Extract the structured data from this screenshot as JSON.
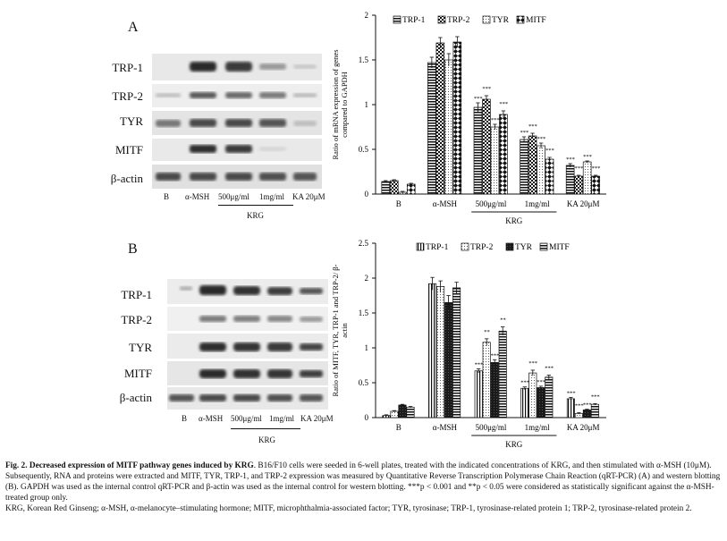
{
  "panel_a": {
    "letter": "A",
    "blot_rows": [
      "TRP-1",
      "TRP-2",
      "TYR",
      "MITF",
      "β-actin"
    ],
    "lanes": [
      "B",
      "α-MSH",
      "500μg/ml",
      "1mg/ml",
      "KA 20μM"
    ],
    "group_label": "KRG"
  },
  "panel_b": {
    "letter": "B",
    "blot_rows": [
      "TRP-1",
      "TRP-2",
      "TYR",
      "MITF",
      "β-actin"
    ],
    "lanes": [
      "B",
      "α-MSH",
      "500μg/ml",
      "1mg/ml",
      "KA 20μM"
    ],
    "group_label": "KRG"
  },
  "chart_data": [
    {
      "type": "bar",
      "ylabel": "Ratio of mRNA expression of genes compared to GAPDH",
      "ylim": [
        0,
        2
      ],
      "yticks": [
        "0",
        "0.5",
        "1",
        "1.5",
        "2"
      ],
      "categories": [
        "B",
        "α-MSH",
        "500μg/ml",
        "1mg/ml",
        "KA 20μM"
      ],
      "group_label": "KRG",
      "legend_position": "top",
      "series": [
        {
          "name": "TRP-1",
          "pattern": "hstripe",
          "values": [
            0.14,
            1.47,
            0.97,
            0.61,
            0.32
          ],
          "errors": [
            0.01,
            0.06,
            0.05,
            0.03,
            0.02
          ]
        },
        {
          "name": "TRP-2",
          "pattern": "check",
          "values": [
            0.15,
            1.69,
            1.06,
            0.65,
            0.2
          ],
          "errors": [
            0.01,
            0.06,
            0.04,
            0.03,
            0.01
          ]
        },
        {
          "name": "TYR",
          "pattern": "dotted",
          "values": [
            0.02,
            1.5,
            0.75,
            0.54,
            0.36
          ],
          "errors": [
            0.01,
            0.07,
            0.03,
            0.03,
            0.01
          ]
        },
        {
          "name": "MITF",
          "pattern": "diamond",
          "values": [
            0.11,
            1.7,
            0.89,
            0.39,
            0.2
          ],
          "errors": [
            0.01,
            0.06,
            0.04,
            0.02,
            0.01
          ]
        }
      ],
      "annotations": [
        {
          "category": 2,
          "series": 0,
          "text": "***"
        },
        {
          "category": 2,
          "series": 1,
          "text": "***"
        },
        {
          "category": 2,
          "series": 2,
          "text": "***"
        },
        {
          "category": 2,
          "series": 3,
          "text": "***"
        },
        {
          "category": 3,
          "series": 0,
          "text": "***"
        },
        {
          "category": 3,
          "series": 1,
          "text": "***"
        },
        {
          "category": 3,
          "series": 2,
          "text": "***"
        },
        {
          "category": 3,
          "series": 3,
          "text": "***"
        },
        {
          "category": 4,
          "series": 0,
          "text": "***"
        },
        {
          "category": 4,
          "series": 1,
          "text": "***"
        },
        {
          "category": 4,
          "series": 2,
          "text": "***"
        },
        {
          "category": 4,
          "series": 3,
          "text": "***"
        }
      ]
    },
    {
      "type": "bar",
      "ylabel": "Ratio of MITF, TYR, TRP-1 and TRP-2/ β-actin",
      "ylim": [
        0,
        2.5
      ],
      "yticks": [
        "0",
        "0.5",
        "1",
        "1.5",
        "2",
        "2.5"
      ],
      "categories": [
        "B",
        "α-MSH",
        "500μg/ml",
        "1mg/ml",
        "KA 20μM"
      ],
      "group_label": "KRG",
      "legend_position": "top",
      "series": [
        {
          "name": "TRP-1",
          "pattern": "vstripe",
          "values": [
            0.03,
            1.92,
            0.67,
            0.42,
            0.27
          ],
          "errors": [
            0.01,
            0.09,
            0.03,
            0.02,
            0.02
          ]
        },
        {
          "name": "TRP-2",
          "pattern": "dotted",
          "values": [
            0.09,
            1.88,
            1.08,
            0.64,
            0.06
          ],
          "errors": [
            0.01,
            0.08,
            0.05,
            0.04,
            0.01
          ]
        },
        {
          "name": "TYR",
          "pattern": "dark",
          "values": [
            0.18,
            1.65,
            0.79,
            0.43,
            0.11
          ],
          "errors": [
            0.01,
            0.1,
            0.04,
            0.02,
            0.01
          ]
        },
        {
          "name": "MITF",
          "pattern": "hstripe",
          "values": [
            0.15,
            1.86,
            1.24,
            0.58,
            0.19
          ],
          "errors": [
            0.01,
            0.08,
            0.06,
            0.03,
            0.01
          ]
        }
      ],
      "annotations": [
        {
          "category": 2,
          "series": 0,
          "text": "***"
        },
        {
          "category": 2,
          "series": 1,
          "text": "**"
        },
        {
          "category": 2,
          "series": 2,
          "text": "***"
        },
        {
          "category": 2,
          "series": 3,
          "text": "**"
        },
        {
          "category": 3,
          "series": 0,
          "text": "***"
        },
        {
          "category": 3,
          "series": 1,
          "text": "***"
        },
        {
          "category": 3,
          "series": 2,
          "text": "***"
        },
        {
          "category": 3,
          "series": 3,
          "text": "***"
        },
        {
          "category": 4,
          "series": 0,
          "text": "***"
        },
        {
          "category": 4,
          "series": 1,
          "text": "***"
        },
        {
          "category": 4,
          "series": 2,
          "text": "***"
        },
        {
          "category": 4,
          "series": 3,
          "text": "***"
        }
      ]
    }
  ],
  "caption": {
    "figure_label": "Fig. 2.",
    "title": "Decreased expression of MITF pathway genes induced by KRG",
    "body": ". B16/F10 cells were seeded in 6-well plates, treated with the indicated concentrations of KRG, and then stimulated with α-MSH (10μM). Subsequently, RNA and proteins were extracted and MITF, TYR, TRP-1, and TRP-2 expression was measured by Quantitative Reverse Transcription Polymerase Chain Reaction (qRT-PCR) (A) and western blotting (B). GAPDH was used as the internal control qRT-PCR and β-actin was used as the internal control for western blotting. ***p < 0.001 and **p < 0.05 were considered as statistically significant against the α-MSH-treated group only.",
    "abbreviations": "KRG, Korean Red Ginseng; α-MSH, α-melanocyte–stimulating hormone; MITF, microphthalmia-associated factor; TYR, tyrosinase; TRP-1, tyrosinase-related protein 1; TRP-2, tyrosinase-related protein 2."
  }
}
